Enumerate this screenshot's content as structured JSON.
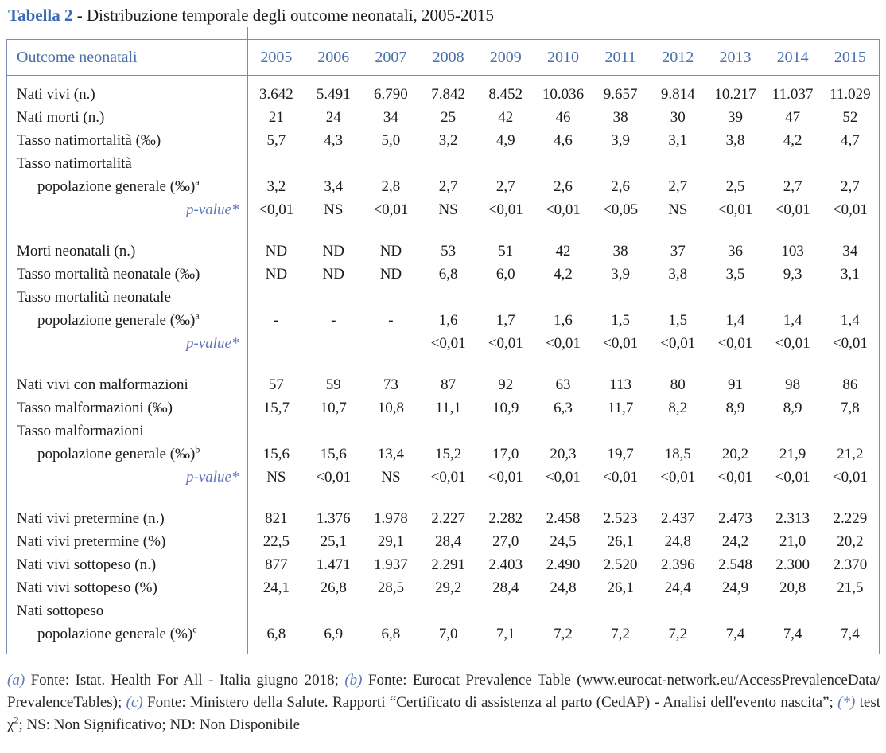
{
  "title": {
    "segments": [
      {
        "t": "Tabella 2",
        "s": "tb"
      },
      {
        "t": " - Distribuzione temporale degli outcome neonatali, 2005-2015",
        "s": "n"
      }
    ]
  },
  "accent_colors": {
    "title_blue": "#3a6ab5",
    "header_blue": "#4a70ad",
    "pvalue_blue": "#5d79ba",
    "line_blue_gray": "#7d8ab6"
  },
  "table": {
    "header": {
      "label": "Outcome neonatali",
      "years": [
        "2005",
        "2006",
        "2007",
        "2008",
        "2009",
        "2010",
        "2011",
        "2012",
        "2013",
        "2014",
        "2015"
      ]
    },
    "rows": [
      {
        "label": "Nati vivi (n.)",
        "values": [
          "3.642",
          "5.491",
          "6.790",
          "7.842",
          "8.452",
          "10.036",
          "9.657",
          "9.814",
          "10.217",
          "11.037",
          "11.029"
        ]
      },
      {
        "label": "Nati morti (n.)",
        "values": [
          "21",
          "24",
          "34",
          "25",
          "42",
          "46",
          "38",
          "30",
          "39",
          "47",
          "52"
        ]
      },
      {
        "label": "Tasso natimortalità (‰)",
        "values": [
          "5,7",
          "4,3",
          "5,0",
          "3,2",
          "4,9",
          "4,6",
          "3,9",
          "3,1",
          "3,8",
          "4,2",
          "4,7"
        ]
      },
      {
        "label": "Tasso natimortalità",
        "values": [
          "",
          "",
          "",
          "",
          "",
          "",
          "",
          "",
          "",
          "",
          ""
        ]
      },
      {
        "label": "popolazione generale (‰)",
        "sup": "a",
        "indent": true,
        "values": [
          "3,2",
          "3,4",
          "2,8",
          "2,7",
          "2,7",
          "2,6",
          "2,6",
          "2,7",
          "2,5",
          "2,7",
          "2,7"
        ]
      },
      {
        "label": "p-value*",
        "pvalue": true,
        "values": [
          "<0,01",
          "NS",
          "<0,01",
          "NS",
          "<0,01",
          "<0,01",
          "<0,05",
          "NS",
          "<0,01",
          "<0,01",
          "<0,01"
        ]
      },
      {
        "label": "Morti neonatali (n.)",
        "gap": true,
        "values": [
          "ND",
          "ND",
          "ND",
          "53",
          "51",
          "42",
          "38",
          "37",
          "36",
          "103",
          "34"
        ]
      },
      {
        "label": "Tasso mortalità neonatale (‰)",
        "values": [
          "ND",
          "ND",
          "ND",
          "6,8",
          "6,0",
          "4,2",
          "3,9",
          "3,8",
          "3,5",
          "9,3",
          "3,1"
        ]
      },
      {
        "label": "Tasso mortalità neonatale",
        "values": [
          "",
          "",
          "",
          "",
          "",
          "",
          "",
          "",
          "",
          "",
          ""
        ]
      },
      {
        "label": "popolazione generale (‰)",
        "sup": "a",
        "indent": true,
        "values": [
          "-",
          "-",
          "-",
          "1,6",
          "1,7",
          "1,6",
          "1,5",
          "1,5",
          "1,4",
          "1,4",
          "1,4"
        ]
      },
      {
        "label": "p-value*",
        "pvalue": true,
        "values": [
          "",
          "",
          "",
          "<0,01",
          "<0,01",
          "<0,01",
          "<0,01",
          "<0,01",
          "<0,01",
          "<0,01",
          "<0,01"
        ]
      },
      {
        "label": "Nati vivi con malformazioni",
        "gap": true,
        "values": [
          "57",
          "59",
          "73",
          "87",
          "92",
          "63",
          "113",
          "80",
          "91",
          "98",
          "86"
        ]
      },
      {
        "label": "Tasso malformazioni (‰)",
        "values": [
          "15,7",
          "10,7",
          "10,8",
          "11,1",
          "10,9",
          "6,3",
          "11,7",
          "8,2",
          "8,9",
          "8,9",
          "7,8"
        ]
      },
      {
        "label": "Tasso malformazioni",
        "values": [
          "",
          "",
          "",
          "",
          "",
          "",
          "",
          "",
          "",
          "",
          ""
        ]
      },
      {
        "label": "popolazione generale (‰)",
        "sup": "b",
        "indent": true,
        "values": [
          "15,6",
          "15,6",
          "13,4",
          "15,2",
          "17,0",
          "20,3",
          "19,7",
          "18,5",
          "20,2",
          "21,9",
          "21,2"
        ]
      },
      {
        "label": "p-value*",
        "pvalue": true,
        "values": [
          "NS",
          "<0,01",
          "NS",
          "<0,01",
          "<0,01",
          "<0,01",
          "<0,01",
          "<0,01",
          "<0,01",
          "<0,01",
          "<0,01"
        ]
      },
      {
        "label": "Nati vivi pretermine (n.)",
        "gap": true,
        "values": [
          "821",
          "1.376",
          "1.978",
          "2.227",
          "2.282",
          "2.458",
          "2.523",
          "2.437",
          "2.473",
          "2.313",
          "2.229"
        ]
      },
      {
        "label": "Nati vivi pretermine (%)",
        "values": [
          "22,5",
          "25,1",
          "29,1",
          "28,4",
          "27,0",
          "24,5",
          "26,1",
          "24,8",
          "24,2",
          "21,0",
          "20,2"
        ]
      },
      {
        "label": "Nati vivi sottopeso (n.)",
        "values": [
          "877",
          "1.471",
          "1.937",
          "2.291",
          "2.403",
          "2.490",
          "2.520",
          "2.396",
          "2.548",
          "2.300",
          "2.370"
        ]
      },
      {
        "label": "Nati vivi sottopeso (%)",
        "values": [
          "24,1",
          "26,8",
          "28,5",
          "29,2",
          "28,4",
          "24,8",
          "26,1",
          "24,4",
          "24,9",
          "20,8",
          "21,5"
        ]
      },
      {
        "label": "Nati sottopeso",
        "values": [
          "",
          "",
          "",
          "",
          "",
          "",
          "",
          "",
          "",
          "",
          ""
        ]
      },
      {
        "label": "popolazione generale (%)",
        "sup": "c",
        "indent": true,
        "values": [
          "6,8",
          "6,9",
          "6,8",
          "7,0",
          "7,1",
          "7,2",
          "7,2",
          "7,2",
          "7,4",
          "7,4",
          "7,4"
        ]
      }
    ]
  },
  "footnote": {
    "segments": [
      {
        "t": "(a)",
        "s": "m"
      },
      {
        "t": " Fonte: Istat. Health For All - Italia giugno 2018; ",
        "s": "n"
      },
      {
        "t": "(b)",
        "s": "m"
      },
      {
        "t": " Fonte: Eurocat Prevalence Table (www.eurocat-network.eu/AccessPrevalenceData/",
        "s": "n"
      },
      {
        "t": "",
        "s": "wbr"
      },
      {
        "t": "PrevalenceTables); ",
        "s": "n"
      },
      {
        "t": "(c)",
        "s": "m"
      },
      {
        "t": " Fonte: Ministero della Salute. Rapporti “Certificato di assistenza al parto (CedAP) - Analisi dell'evento nascita”; ",
        "s": "n"
      },
      {
        "t": "(*)",
        "s": "m"
      },
      {
        "t": " test χ",
        "s": "n"
      },
      {
        "t": "2",
        "s": "sup"
      },
      {
        "t": "; NS: Non Significativo; ND: Non Disponibile",
        "s": "n"
      }
    ]
  }
}
